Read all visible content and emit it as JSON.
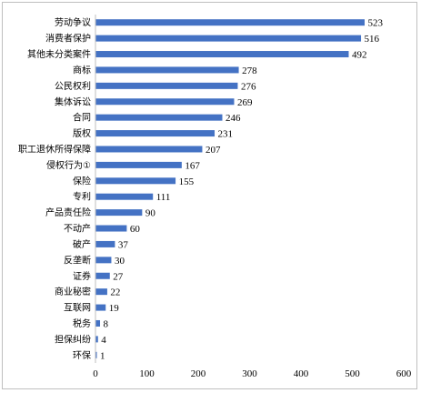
{
  "chart_data": {
    "type": "bar",
    "orientation": "horizontal",
    "categories": [
      "劳动争议",
      "消费者保护",
      "其他未分类案件",
      "商标",
      "公民权利",
      "集体诉讼",
      "合同",
      "版权",
      "职工退休所得保障",
      "侵权行为①",
      "保险",
      "专利",
      "产品责任险",
      "不动产",
      "破产",
      "反垄断",
      "证券",
      "商业秘密",
      "互联网",
      "税务",
      "担保纠纷",
      "环保"
    ],
    "values": [
      523,
      516,
      492,
      278,
      276,
      269,
      246,
      231,
      207,
      167,
      155,
      111,
      90,
      60,
      37,
      30,
      27,
      22,
      19,
      8,
      4,
      1
    ],
    "xlim": [
      0,
      600
    ],
    "xticks": [
      0,
      100,
      200,
      300,
      400,
      500,
      600
    ],
    "xtick_labels": [
      "0",
      "100",
      "200",
      "300",
      "400",
      "500",
      "600"
    ],
    "grid": false,
    "legend": "none",
    "bar_color": "#4472C4",
    "title": "",
    "xlabel": "",
    "ylabel": ""
  }
}
